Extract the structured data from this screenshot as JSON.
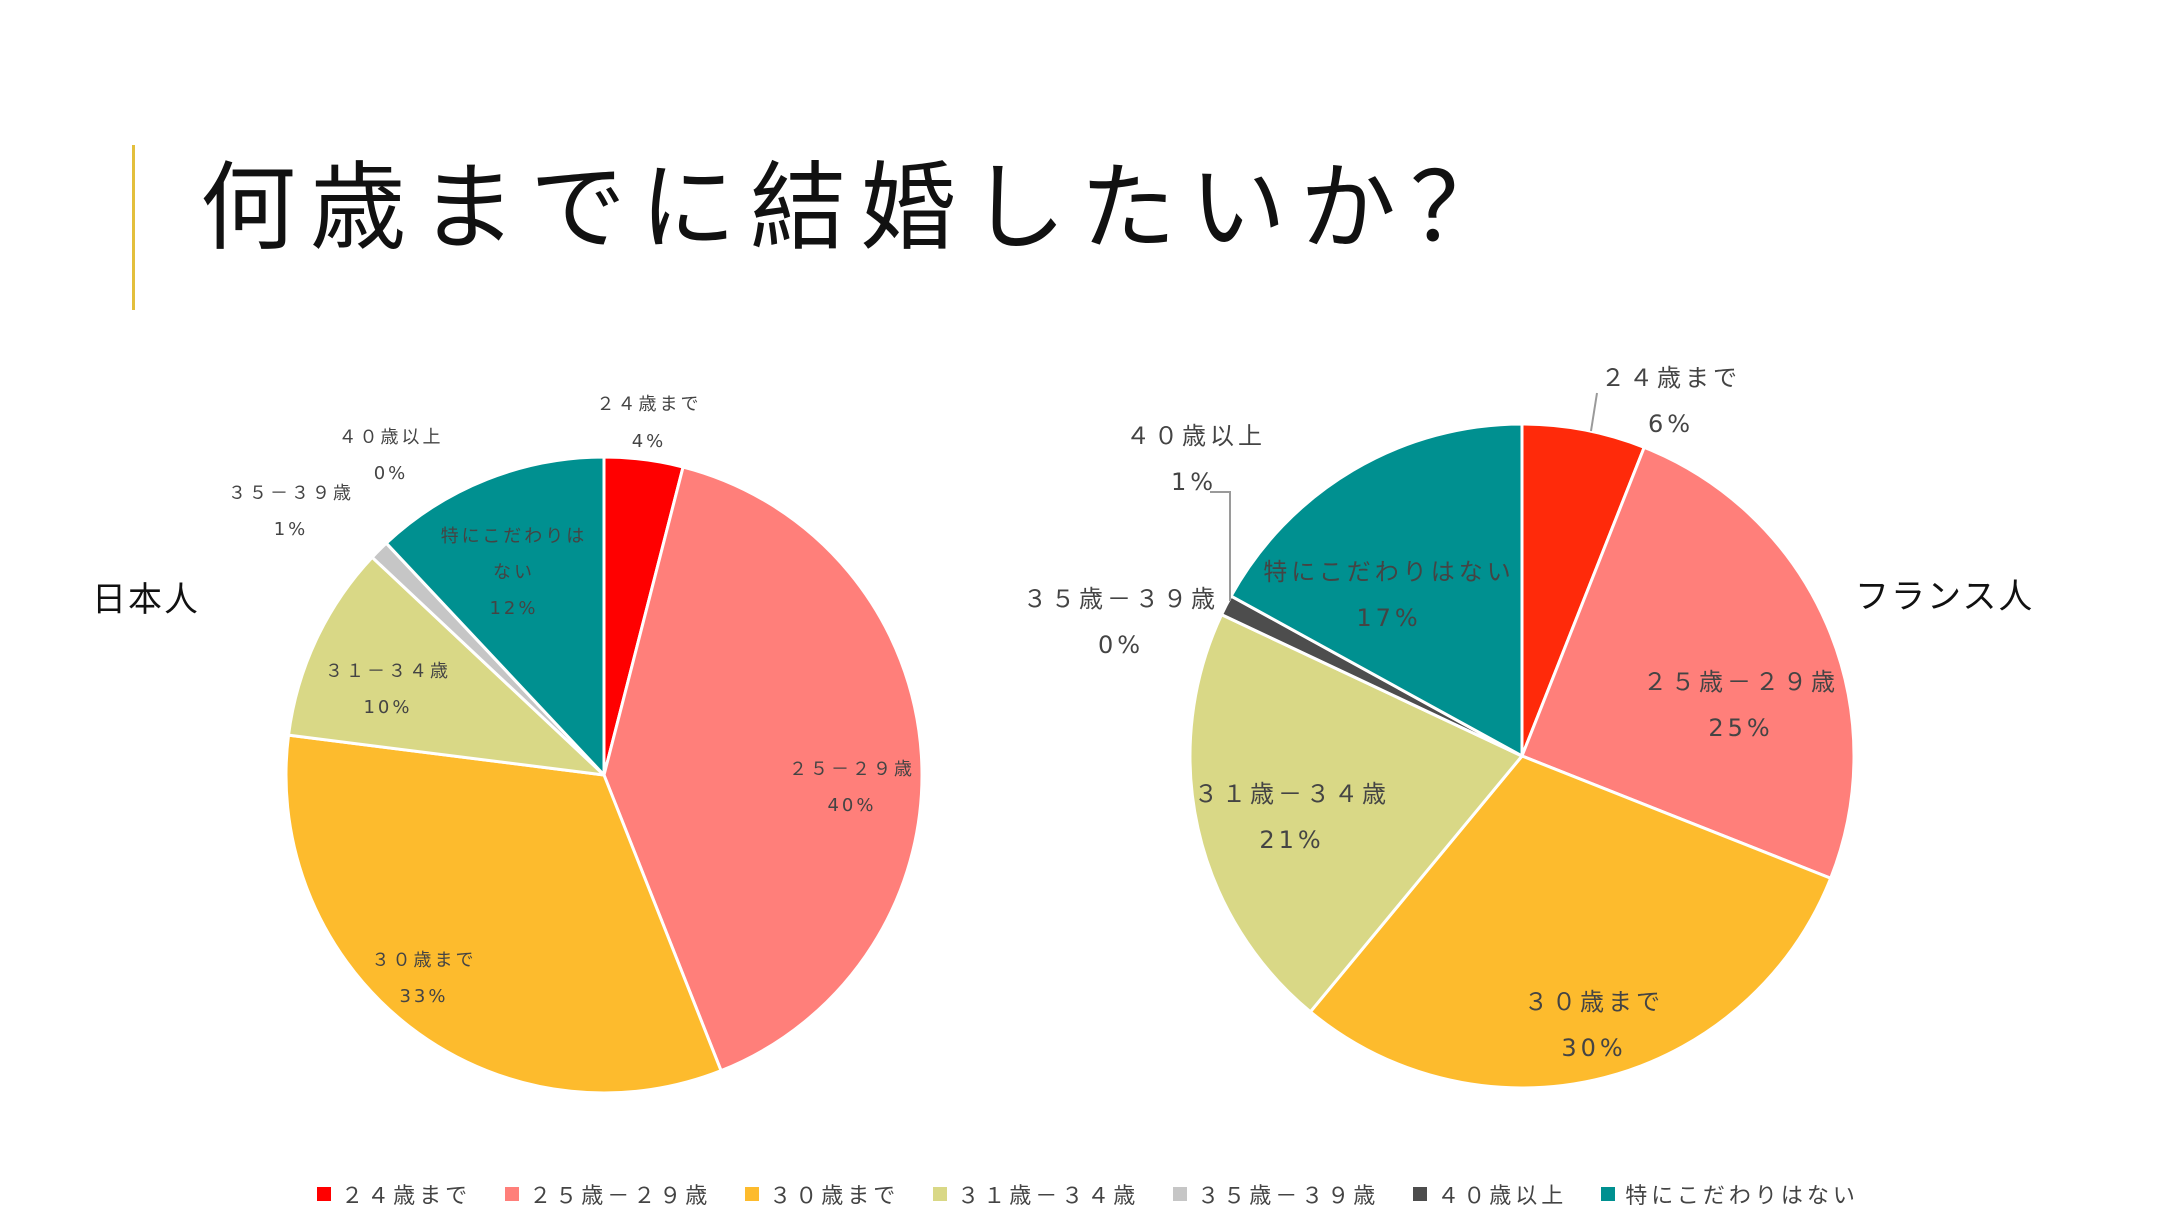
{
  "title": "何歳までに結婚したいか？",
  "colors": {
    "accent": "#e3bf3c",
    "categories": [
      "#ff0000",
      "#ff7f7a",
      "#fdbb2d",
      "#d9d886",
      "#c6c6c6",
      "#4d4d4d",
      "#009090"
    ],
    "categories_france_first": "#ff2a0a"
  },
  "chart_data": [
    {
      "type": "pie",
      "series_label": "日本人",
      "categories": [
        "２４歳まで",
        "２５－２９歳",
        "３０歳まで",
        "３１－３４歳",
        "３５－３９歳",
        "４０歳以上",
        "特にこだわりはない"
      ],
      "legend_names": [
        "２４歳まで",
        "２５歳－２９歳",
        "３０歳まで",
        "３１歳－３４歳",
        "３５歳－３９歳",
        "４０歳以上",
        "特にこだわりはない"
      ],
      "values": [
        4,
        40,
        33,
        10,
        1,
        0,
        12
      ],
      "value_labels": [
        "4%",
        "40%",
        "33%",
        "10%",
        "1%",
        "0%",
        "12%"
      ],
      "start_angle": 0,
      "direction": "clockwise"
    },
    {
      "type": "pie",
      "series_label": "フランス人",
      "categories": [
        "２４歳まで",
        "２５歳－２９歳",
        "３０歳まで",
        "３１歳－３４歳",
        "３５歳－３９歳",
        "４０歳以上",
        "特にこだわりはない"
      ],
      "values": [
        6,
        25,
        30,
        21,
        0,
        1,
        17
      ],
      "value_labels": [
        "6%",
        "25%",
        "30%",
        "21%",
        "0%",
        "1%",
        "17%"
      ],
      "start_angle": 0,
      "direction": "clockwise"
    }
  ],
  "legend": {
    "position": "bottom",
    "items": [
      "２４歳まで",
      "２５歳－２９歳",
      "３０歳まで",
      "３１歳－３４歳",
      "３５歳－３９歳",
      "４０歳以上",
      "特にこだわりはない"
    ]
  }
}
